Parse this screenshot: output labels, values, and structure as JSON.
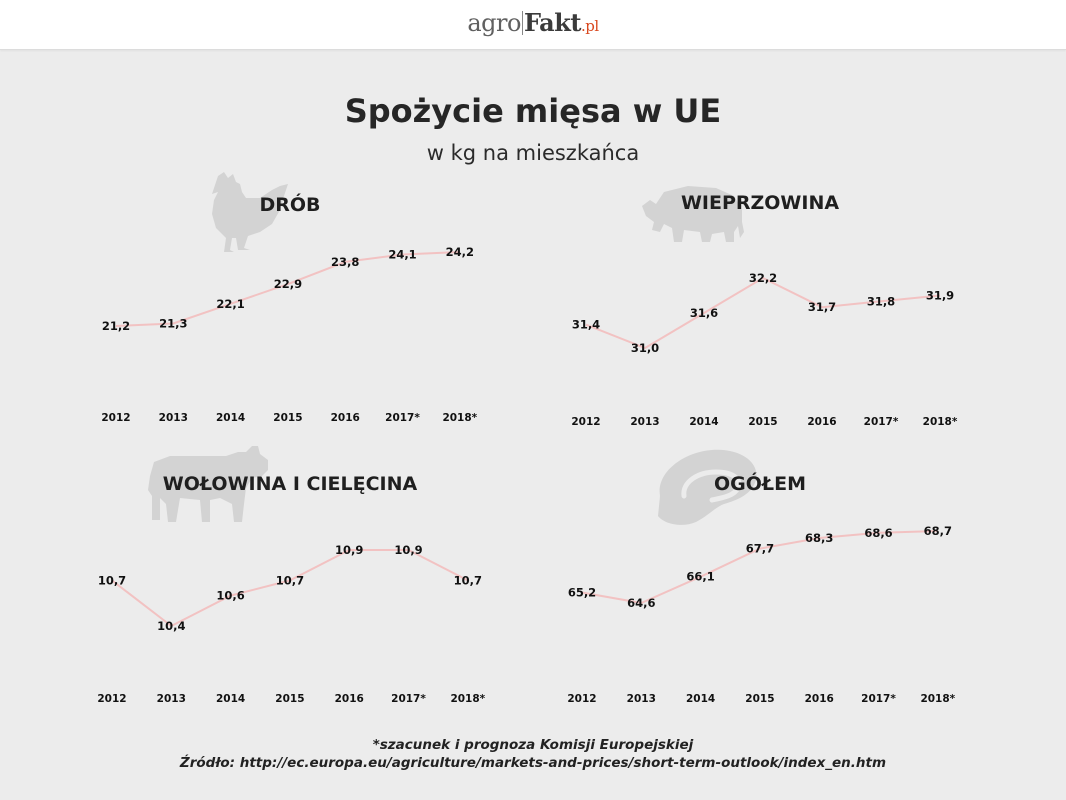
{
  "header": {
    "logo": {
      "part1": "agro",
      "part2": "Fakt",
      "part3": ".pl"
    }
  },
  "title": "Spożycie mięsa w UE",
  "subtitle": "w kg na mieszkańca",
  "footnote": "*szacunek i prognoza Komisji Europejskiej",
  "source": "Źródło: http://ec.europa.eu/agriculture/markets-and-prices/short-term-outlook/index_en.htm",
  "colors": {
    "line": "#f2c2c2",
    "silhouette": "#d3d3d3",
    "logo_accent": "#d9481f"
  },
  "chart_data": [
    {
      "type": "line",
      "title": "DRÓB",
      "icon": "chicken-icon",
      "categories": [
        "2012",
        "2013",
        "2014",
        "2015",
        "2016",
        "2017*",
        "2018*"
      ],
      "values": [
        21.2,
        21.3,
        22.1,
        22.9,
        23.8,
        24.1,
        24.2
      ],
      "labels": [
        "21,2",
        "21,3",
        "22,1",
        "22,9",
        "23,8",
        "24,1",
        "24,2"
      ]
    },
    {
      "type": "line",
      "title": "WIEPRZOWINA",
      "icon": "pig-icon",
      "categories": [
        "2012",
        "2013",
        "2014",
        "2015",
        "2016",
        "2017*",
        "2018*"
      ],
      "values": [
        31.4,
        31.0,
        31.6,
        32.2,
        31.7,
        31.8,
        31.9
      ],
      "labels": [
        "31,4",
        "31,0",
        "31,6",
        "32,2",
        "31,7",
        "31,8",
        "31,9"
      ]
    },
    {
      "type": "line",
      "title": "WOŁOWINA I CIELĘCINA",
      "icon": "cow-icon",
      "categories": [
        "2012",
        "2013",
        "2014",
        "2015",
        "2016",
        "2017*",
        "2018*"
      ],
      "values": [
        10.7,
        10.4,
        10.6,
        10.7,
        10.9,
        10.9,
        10.7
      ],
      "labels": [
        "10,7",
        "10,4",
        "10,6",
        "10,7",
        "10,9",
        "10,9",
        "10,7"
      ]
    },
    {
      "type": "line",
      "title": "OGÓŁEM",
      "icon": "steak-icon",
      "categories": [
        "2012",
        "2013",
        "2014",
        "2015",
        "2016",
        "2017*",
        "2018*"
      ],
      "values": [
        65.2,
        64.6,
        66.1,
        67.7,
        68.3,
        68.6,
        68.7
      ],
      "labels": [
        "65,2",
        "64,6",
        "66,1",
        "67,7",
        "68,3",
        "68,6",
        "68,7"
      ]
    }
  ]
}
